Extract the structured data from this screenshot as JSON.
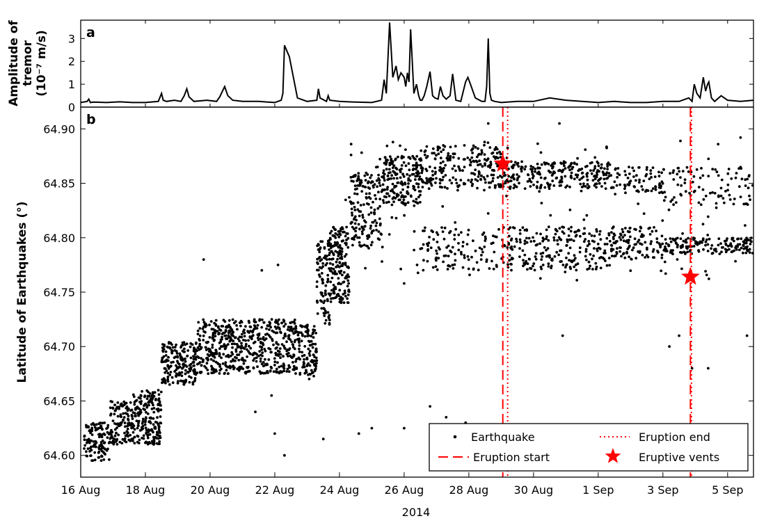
{
  "chart_data": [
    {
      "panel": "a",
      "type": "line",
      "ylabel_line1": "Amplitude of",
      "ylabel_line2": "tremor",
      "ylabel_line3": "(10⁻⁷ m/s)",
      "ylim": [
        0,
        3.8
      ],
      "yticks": [
        "0",
        "1",
        "2",
        "3"
      ],
      "xlim_days": [
        0,
        20.8
      ],
      "series": [
        {
          "color": "#000000",
          "x_days": [
            0,
            0.2,
            0.25,
            0.3,
            0.4,
            0.8,
            1.2,
            1.6,
            2,
            2.4,
            2.5,
            2.55,
            2.65,
            2.9,
            3.1,
            3.2,
            3.28,
            3.35,
            3.5,
            3.9,
            4.2,
            4.3,
            4.45,
            4.55,
            4.7,
            5,
            5.5,
            6,
            6.2,
            6.25,
            6.3,
            6.45,
            6.7,
            7,
            7.3,
            7.35,
            7.4,
            7.6,
            7.65,
            7.7,
            8,
            8.5,
            9,
            9.3,
            9.38,
            9.45,
            9.55,
            9.65,
            9.75,
            9.82,
            9.9,
            10.0,
            10.05,
            10.1,
            10.15,
            10.2,
            10.3,
            10.38,
            10.45,
            10.5,
            10.55,
            10.62,
            10.7,
            10.8,
            10.88,
            10.95,
            11.05,
            11.12,
            11.2,
            11.3,
            11.42,
            11.5,
            11.6,
            11.75,
            11.9,
            11.97,
            12.05,
            12.2,
            12.4,
            12.5,
            12.55,
            12.6,
            12.65,
            12.7,
            12.8,
            13.0,
            13.5,
            14,
            14.5,
            15,
            15.5,
            16,
            16.5,
            17,
            17.5,
            18,
            18.5,
            18.8,
            18.9,
            18.97,
            19.05,
            19.15,
            19.25,
            19.32,
            19.38,
            19.42,
            19.5,
            19.6,
            19.8,
            20,
            20.4,
            20.8
          ],
          "y": [
            0.2,
            0.25,
            0.35,
            0.2,
            0.22,
            0.2,
            0.23,
            0.2,
            0.2,
            0.25,
            0.6,
            0.3,
            0.25,
            0.3,
            0.25,
            0.5,
            0.8,
            0.45,
            0.25,
            0.3,
            0.25,
            0.45,
            0.9,
            0.5,
            0.3,
            0.25,
            0.25,
            0.2,
            0.3,
            0.6,
            2.7,
            2.2,
            0.4,
            0.25,
            0.3,
            0.8,
            0.4,
            0.25,
            0.5,
            0.3,
            0.25,
            0.22,
            0.2,
            0.3,
            1.2,
            0.6,
            3.7,
            1.3,
            1.8,
            1.2,
            1.5,
            1.3,
            0.9,
            1.5,
            1.1,
            3.4,
            0.6,
            1.0,
            0.5,
            0.3,
            0.3,
            0.5,
            0.9,
            1.55,
            0.5,
            0.4,
            0.35,
            0.9,
            0.5,
            0.35,
            0.5,
            1.45,
            0.3,
            0.25,
            1.1,
            1.3,
            1.0,
            0.4,
            0.25,
            0.25,
            0.9,
            3.0,
            0.6,
            0.3,
            0.25,
            0.2,
            0.25,
            0.25,
            0.4,
            0.3,
            0.25,
            0.2,
            0.25,
            0.2,
            0.2,
            0.25,
            0.25,
            0.4,
            0.25,
            1.0,
            0.6,
            0.4,
            1.3,
            0.7,
            1.0,
            1.1,
            0.4,
            0.25,
            0.5,
            0.3,
            0.25,
            0.3
          ]
        }
      ]
    },
    {
      "panel": "b",
      "type": "scatter",
      "xlabel": "2014",
      "ylabel": "Latitude of Earthquakes (°)",
      "ylim": [
        64.58,
        64.92
      ],
      "xlim_days": [
        0,
        20.8
      ],
      "xticks": [
        "16 Aug",
        "18 Aug",
        "20 Aug",
        "22 Aug",
        "24 Aug",
        "26 Aug",
        "28 Aug",
        "30 Aug",
        "1 Sep",
        "3 Sep",
        "5 Sep"
      ],
      "xtick_days": [
        0,
        2,
        4,
        6,
        8,
        10,
        12,
        14,
        16,
        18,
        20
      ],
      "yticks": [
        "64.60",
        "64.65",
        "64.70",
        "64.75",
        "64.80",
        "64.85",
        "64.90"
      ],
      "ytick_values": [
        64.6,
        64.65,
        64.7,
        64.75,
        64.8,
        64.85,
        64.9
      ],
      "earthquake_clusters": [
        {
          "x": [
            0.1,
            0.9
          ],
          "y": [
            64.595,
            64.63
          ],
          "n": 120
        },
        {
          "x": [
            0.9,
            1.6
          ],
          "y": [
            64.61,
            64.65
          ],
          "n": 110
        },
        {
          "x": [
            1.6,
            2.5
          ],
          "y": [
            64.61,
            64.66
          ],
          "n": 200
        },
        {
          "x": [
            2.5,
            3.6
          ],
          "y": [
            64.665,
            64.705
          ],
          "n": 190
        },
        {
          "x": [
            3.6,
            4.3
          ],
          "y": [
            64.675,
            64.725
          ],
          "n": 130
        },
        {
          "x": [
            4.3,
            6.7
          ],
          "y": [
            64.675,
            64.725
          ],
          "n": 420
        },
        {
          "x": [
            6.7,
            7.3
          ],
          "y": [
            64.67,
            64.72
          ],
          "n": 110
        },
        {
          "x": [
            7.3,
            7.7
          ],
          "y": [
            64.72,
            64.8
          ],
          "n": 90
        },
        {
          "x": [
            7.7,
            8.3
          ],
          "y": [
            64.74,
            64.81
          ],
          "n": 170
        },
        {
          "x": [
            8.3,
            9.3
          ],
          "y": [
            64.79,
            64.86
          ],
          "n": 160
        },
        {
          "x": [
            9.3,
            10.5
          ],
          "y": [
            64.83,
            64.875
          ],
          "n": 190
        },
        {
          "x": [
            10.5,
            13.2
          ],
          "y": [
            64.845,
            64.885
          ],
          "n": 230
        },
        {
          "x": [
            10.5,
            13.2
          ],
          "y": [
            64.77,
            64.81
          ],
          "n": 110
        },
        {
          "x": [
            13.2,
            16.4
          ],
          "y": [
            64.845,
            64.87
          ],
          "n": 230
        },
        {
          "x": [
            13.2,
            16.4
          ],
          "y": [
            64.77,
            64.81
          ],
          "n": 210
        },
        {
          "x": [
            16.4,
            18.0
          ],
          "y": [
            64.84,
            64.865
          ],
          "n": 70
        },
        {
          "x": [
            16.4,
            18.0
          ],
          "y": [
            64.78,
            64.81
          ],
          "n": 110
        },
        {
          "x": [
            18.0,
            20.8
          ],
          "y": [
            64.785,
            64.8
          ],
          "n": 150
        },
        {
          "x": [
            18.0,
            20.8
          ],
          "y": [
            64.83,
            64.865
          ],
          "n": 90
        },
        {
          "x": [
            8.0,
            20.8
          ],
          "y": [
            64.76,
            64.89
          ],
          "n": 130
        }
      ],
      "scattered_points": [
        [
          3.8,
          64.78
        ],
        [
          5.6,
          64.77
        ],
        [
          6.1,
          64.775
        ],
        [
          5.4,
          64.64
        ],
        [
          5.9,
          64.655
        ],
        [
          6.0,
          64.62
        ],
        [
          6.3,
          64.6
        ],
        [
          7.5,
          64.615
        ],
        [
          8.6,
          64.62
        ],
        [
          9.0,
          64.625
        ],
        [
          10.0,
          64.625
        ],
        [
          10.8,
          64.645
        ],
        [
          11.3,
          64.635
        ],
        [
          11.9,
          64.63
        ],
        [
          18.2,
          64.7
        ],
        [
          18.5,
          64.71
        ],
        [
          14.9,
          64.71
        ],
        [
          18.9,
          64.68
        ],
        [
          19.4,
          64.68
        ],
        [
          20.6,
          64.71
        ],
        [
          12.6,
          64.905
        ],
        [
          14.8,
          64.905
        ],
        [
          20.4,
          64.892
        ],
        [
          10.0,
          64.758
        ],
        [
          8.8,
          64.772
        ],
        [
          10.4,
          64.775
        ]
      ],
      "vertical_lines": [
        {
          "label": "Eruption start",
          "style": "dashed",
          "color": "#ff0000",
          "x": 13.05
        },
        {
          "label": "Eruption end",
          "style": "dotted",
          "color": "#ff0000",
          "x": 13.2
        },
        {
          "label": "Eruption start",
          "style": "dashed",
          "color": "#ff0000",
          "x": 18.85
        },
        {
          "label": "Eruption end",
          "style": "dotted",
          "color": "#ff0000",
          "x": 18.85
        }
      ],
      "eruptive_vents": [
        {
          "x": 13.05,
          "y": 64.868
        },
        {
          "x": 18.85,
          "y": 64.764
        }
      ],
      "legend": {
        "placement": "lower-right",
        "entries": [
          {
            "label": "Earthquake",
            "marker": "dot"
          },
          {
            "label": "Eruption end",
            "marker": "dotted-line"
          },
          {
            "label": "Eruption start",
            "marker": "dashed-line"
          },
          {
            "label": "Eruptive vents",
            "marker": "star"
          }
        ]
      },
      "colors": {
        "points": "#000000",
        "eruption": "#ff0000"
      }
    }
  ]
}
